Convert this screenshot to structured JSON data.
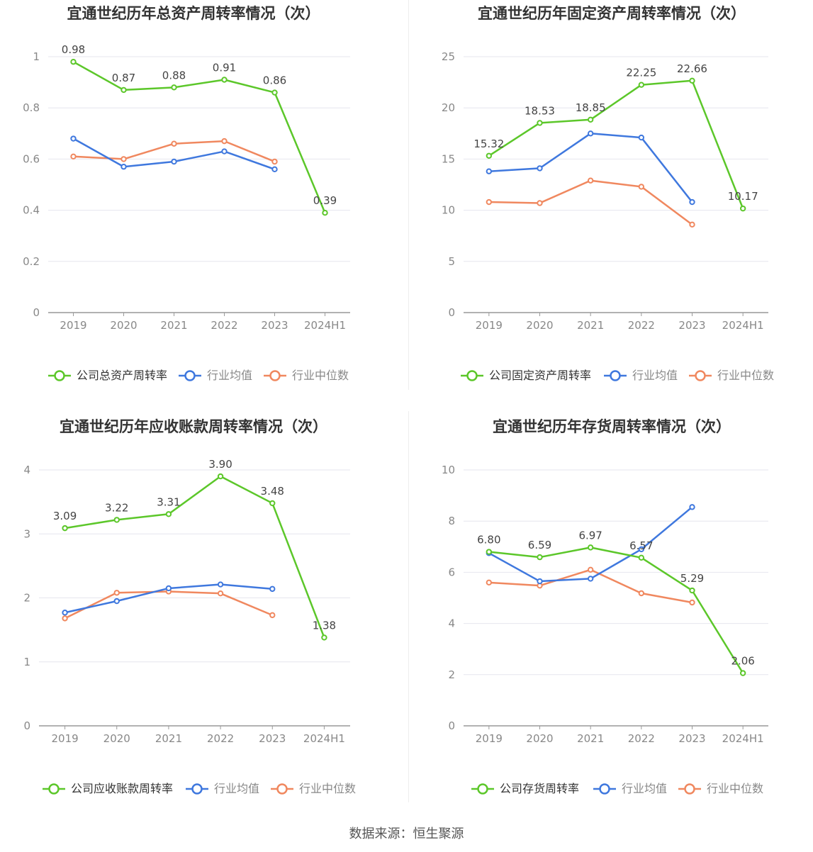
{
  "source": "数据来源：恒生聚源",
  "colors": {
    "company": "#5cc72a",
    "avg": "#3f78de",
    "median": "#f0885f",
    "grid": "#e6e6ee",
    "axis": "#999999",
    "tick": "#888888",
    "label": "#444444",
    "title": "#333333"
  },
  "chart_data": [
    {
      "type": "line",
      "title": "宜通世纪历年总资产周转率情况（次）",
      "categories": [
        "2019",
        "2020",
        "2021",
        "2022",
        "2023",
        "2024H1"
      ],
      "ylim": [
        0,
        1
      ],
      "yticks": [
        "0",
        "0.2",
        "0.4",
        "0.6",
        "0.8",
        "1"
      ],
      "ytick_values": [
        0,
        0.2,
        0.4,
        0.6,
        0.8,
        1
      ],
      "label_format": "2",
      "series": [
        {
          "name": "公司总资产周转率",
          "role": "company",
          "values": [
            0.98,
            0.87,
            0.88,
            0.91,
            0.86,
            0.39
          ]
        },
        {
          "name": "行业均值",
          "role": "avg",
          "values": [
            0.68,
            0.57,
            0.59,
            0.63,
            0.56,
            null
          ]
        },
        {
          "name": "行业中位数",
          "role": "median",
          "values": [
            0.61,
            0.6,
            0.66,
            0.67,
            0.59,
            null
          ]
        }
      ],
      "data_labels": [
        "0.98",
        "0.87",
        "0.88",
        "0.91",
        "0.86",
        "0.39"
      ],
      "legend": "bottom"
    },
    {
      "type": "line",
      "title": "宜通世纪历年固定资产周转率情况（次）",
      "categories": [
        "2019",
        "2020",
        "2021",
        "2022",
        "2023",
        "2024H1"
      ],
      "ylim": [
        0,
        25
      ],
      "yticks": [
        "0",
        "5",
        "10",
        "15",
        "20",
        "25"
      ],
      "ytick_values": [
        0,
        5,
        10,
        15,
        20,
        25
      ],
      "series": [
        {
          "name": "公司固定资产周转率",
          "role": "company",
          "values": [
            15.32,
            18.53,
            18.85,
            22.25,
            22.66,
            10.17
          ]
        },
        {
          "name": "行业均值",
          "role": "avg",
          "values": [
            13.8,
            14.1,
            17.5,
            17.1,
            10.8,
            null
          ]
        },
        {
          "name": "行业中位数",
          "role": "median",
          "values": [
            10.8,
            10.7,
            12.9,
            12.3,
            8.6,
            null
          ]
        }
      ],
      "data_labels": [
        "15.32",
        "18.53",
        "18.85",
        "22.25",
        "22.66",
        "10.17"
      ],
      "legend": "bottom"
    },
    {
      "type": "line",
      "title": "宜通世纪历年应收账款周转率情况（次）",
      "categories": [
        "2019",
        "2020",
        "2021",
        "2022",
        "2023",
        "2024H1"
      ],
      "ylim": [
        0,
        4
      ],
      "yticks": [
        "0",
        "1",
        "2",
        "3",
        "4"
      ],
      "ytick_values": [
        0,
        1,
        2,
        3,
        4
      ],
      "series": [
        {
          "name": "公司应收账款周转率",
          "role": "company",
          "values": [
            3.09,
            3.22,
            3.31,
            3.9,
            3.48,
            1.38
          ]
        },
        {
          "name": "行业均值",
          "role": "avg",
          "values": [
            1.77,
            1.95,
            2.15,
            2.21,
            2.14,
            null
          ]
        },
        {
          "name": "行业中位数",
          "role": "median",
          "values": [
            1.68,
            2.08,
            2.1,
            2.07,
            1.73,
            null
          ]
        }
      ],
      "data_labels": [
        "3.09",
        "3.22",
        "3.31",
        "3.90",
        "3.48",
        "1.38"
      ],
      "legend": "bottom"
    },
    {
      "type": "line",
      "title": "宜通世纪历年存货周转率情况（次）",
      "categories": [
        "2019",
        "2020",
        "2021",
        "2022",
        "2023",
        "2024H1"
      ],
      "ylim": [
        0,
        10
      ],
      "yticks": [
        "0",
        "2",
        "4",
        "6",
        "8",
        "10"
      ],
      "ytick_values": [
        0,
        2,
        4,
        6,
        8,
        10
      ],
      "series": [
        {
          "name": "公司存货周转率",
          "role": "company",
          "values": [
            6.8,
            6.59,
            6.97,
            6.57,
            5.29,
            2.06
          ]
        },
        {
          "name": "行业均值",
          "role": "avg",
          "values": [
            6.75,
            5.65,
            5.75,
            6.9,
            8.55,
            null
          ]
        },
        {
          "name": "行业中位数",
          "role": "median",
          "values": [
            5.6,
            5.48,
            6.1,
            5.18,
            4.82,
            null
          ]
        }
      ],
      "data_labels": [
        "6.80",
        "6.59",
        "6.97",
        "6.57",
        "5.29",
        "2.06"
      ],
      "legend": "bottom"
    }
  ]
}
